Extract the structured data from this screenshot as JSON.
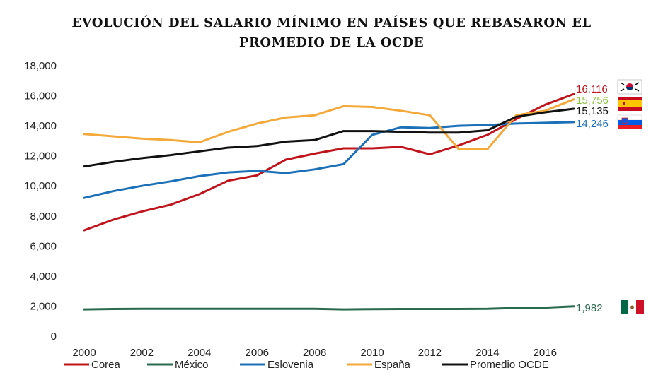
{
  "title_line1": "EVOLUCIÓN DEL SALARIO MÍNIMO EN PAÍSES QUE REBASARON EL",
  "title_line2": "PROMEDIO DE LA OCDE",
  "chart_data": {
    "type": "line",
    "title": "EVOLUCIÓN DEL SALARIO MÍNIMO EN PAÍSES QUE REBASARON EL PROMEDIO DE LA OCDE",
    "x": [
      2000,
      2001,
      2002,
      2003,
      2004,
      2005,
      2006,
      2007,
      2008,
      2009,
      2010,
      2011,
      2012,
      2013,
      2014,
      2015,
      2016,
      2017
    ],
    "x_tick_labels": [
      "2000",
      "2002",
      "2004",
      "2006",
      "2008",
      "2010",
      "2012",
      "2014",
      "2016"
    ],
    "y_tick_labels": [
      "0",
      "2,000",
      "4,000",
      "6,000",
      "8,000",
      "10,000",
      "12,000",
      "14,000",
      "16,000",
      "18,000"
    ],
    "ylim": [
      0,
      18000
    ],
    "xlim": [
      2000,
      2017
    ],
    "grid": false,
    "legend_position": "bottom",
    "series": [
      {
        "name": "Corea",
        "color": "#c0141c",
        "end_label": "16,116",
        "flag": "korea-flag",
        "values": [
          7050,
          7750,
          8300,
          8750,
          9450,
          10350,
          10700,
          11750,
          12150,
          12500,
          12500,
          12600,
          12100,
          12700,
          13400,
          14450,
          15400,
          16116
        ]
      },
      {
        "name": "México",
        "color": "#2a6b4f",
        "end_label": "1,982",
        "flag": "mexico-flag",
        "values": [
          1780,
          1810,
          1820,
          1820,
          1820,
          1820,
          1820,
          1820,
          1820,
          1780,
          1800,
          1810,
          1810,
          1810,
          1820,
          1880,
          1900,
          1982
        ]
      },
      {
        "name": "Eslovenia",
        "color": "#1c70b8",
        "end_label": "14,246",
        "flag": "slovenia-flag",
        "values": [
          9200,
          9650,
          10000,
          10300,
          10650,
          10900,
          11000,
          10850,
          11100,
          11450,
          13400,
          13900,
          13850,
          14000,
          14050,
          14150,
          14200,
          14246
        ]
      },
      {
        "name": "España",
        "color": "#f4a93b",
        "end_label": "15,756",
        "flag": "spain-flag",
        "values": [
          13450,
          13300,
          13150,
          13050,
          12900,
          13600,
          14150,
          14550,
          14700,
          15300,
          15250,
          15000,
          14700,
          12450,
          12450,
          14700,
          15000,
          15756
        ]
      },
      {
        "name": "Promedio OCDE",
        "color": "#111111",
        "end_label": "15,135",
        "flag": "",
        "values": [
          11300,
          11600,
          11850,
          12050,
          12300,
          12550,
          12650,
          12950,
          13050,
          13650,
          13650,
          13600,
          13550,
          13550,
          13700,
          14600,
          14900,
          15135
        ]
      }
    ]
  },
  "icons": {
    "korea_flag": "korea-flag-icon",
    "spain_flag": "spain-flag-icon",
    "slovenia_flag": "slovenia-flag-icon",
    "mexico_flag": "mexico-flag-icon"
  }
}
